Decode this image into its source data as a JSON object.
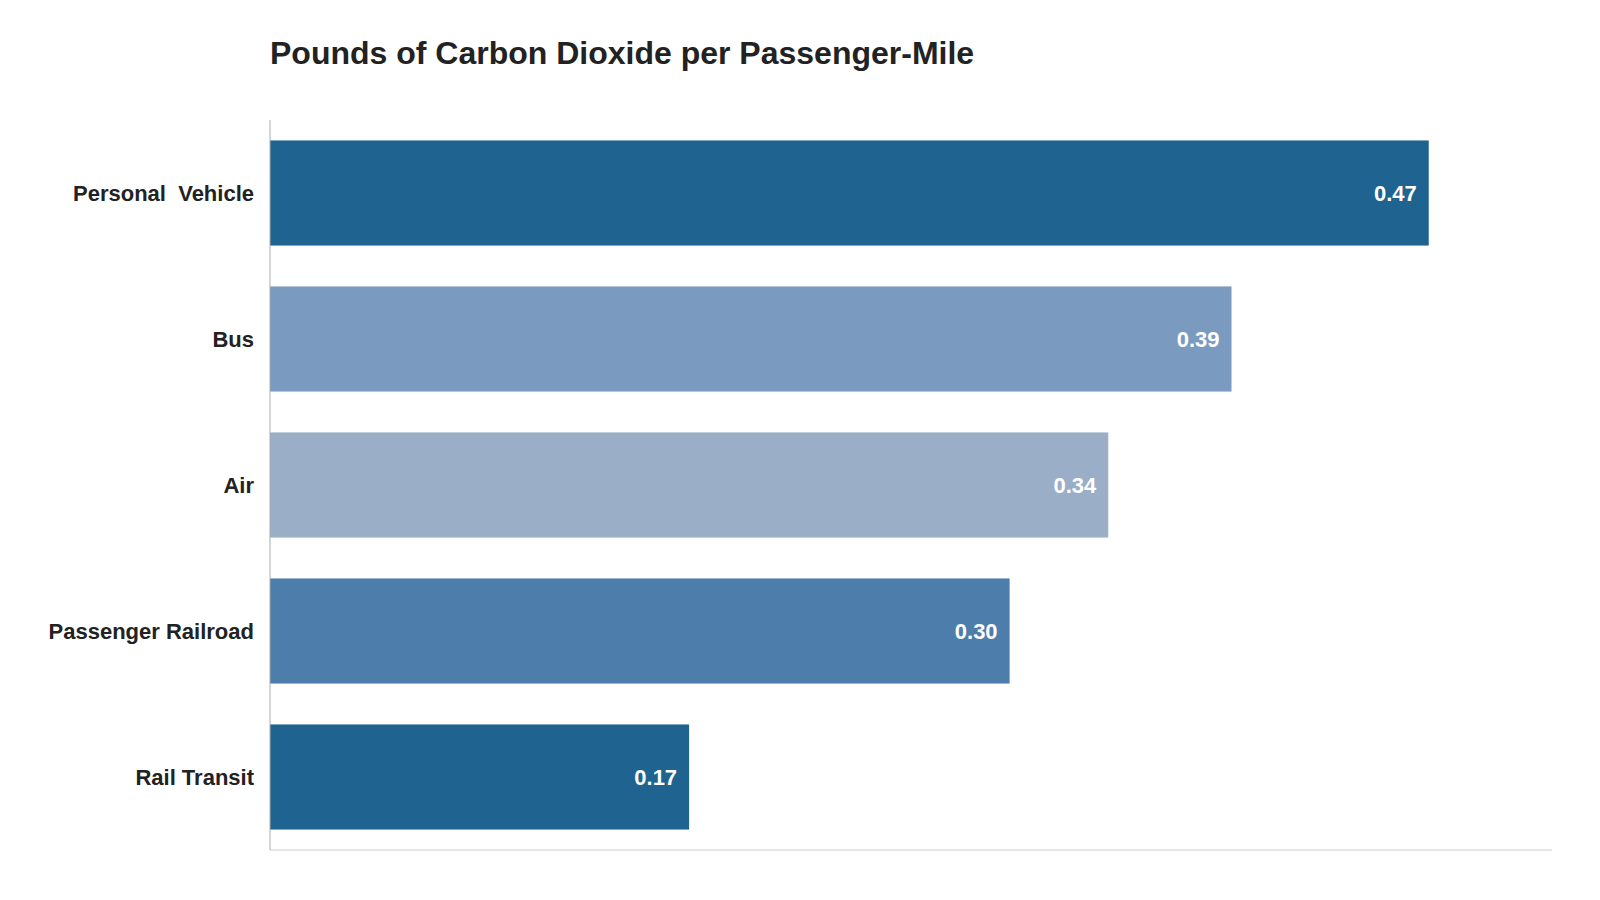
{
  "chart_data": {
    "type": "bar",
    "orientation": "horizontal",
    "title": "Pounds of Carbon Dioxide per Passenger-Mile",
    "categories": [
      "Personal  Vehicle",
      "Bus",
      "Air",
      "Passenger Railroad",
      "Rail Transit"
    ],
    "values": [
      0.47,
      0.39,
      0.34,
      0.3,
      0.17
    ],
    "value_labels": [
      "0.47",
      "0.39",
      "0.34",
      "0.30",
      "0.17"
    ],
    "colors": [
      "#1f6490",
      "#7b9abf",
      "#9aaec8",
      "#4d7daa",
      "#1f6490"
    ],
    "xlim": [
      0,
      0.52
    ],
    "data_labels": true,
    "grid": false,
    "tick_labels": "y"
  }
}
